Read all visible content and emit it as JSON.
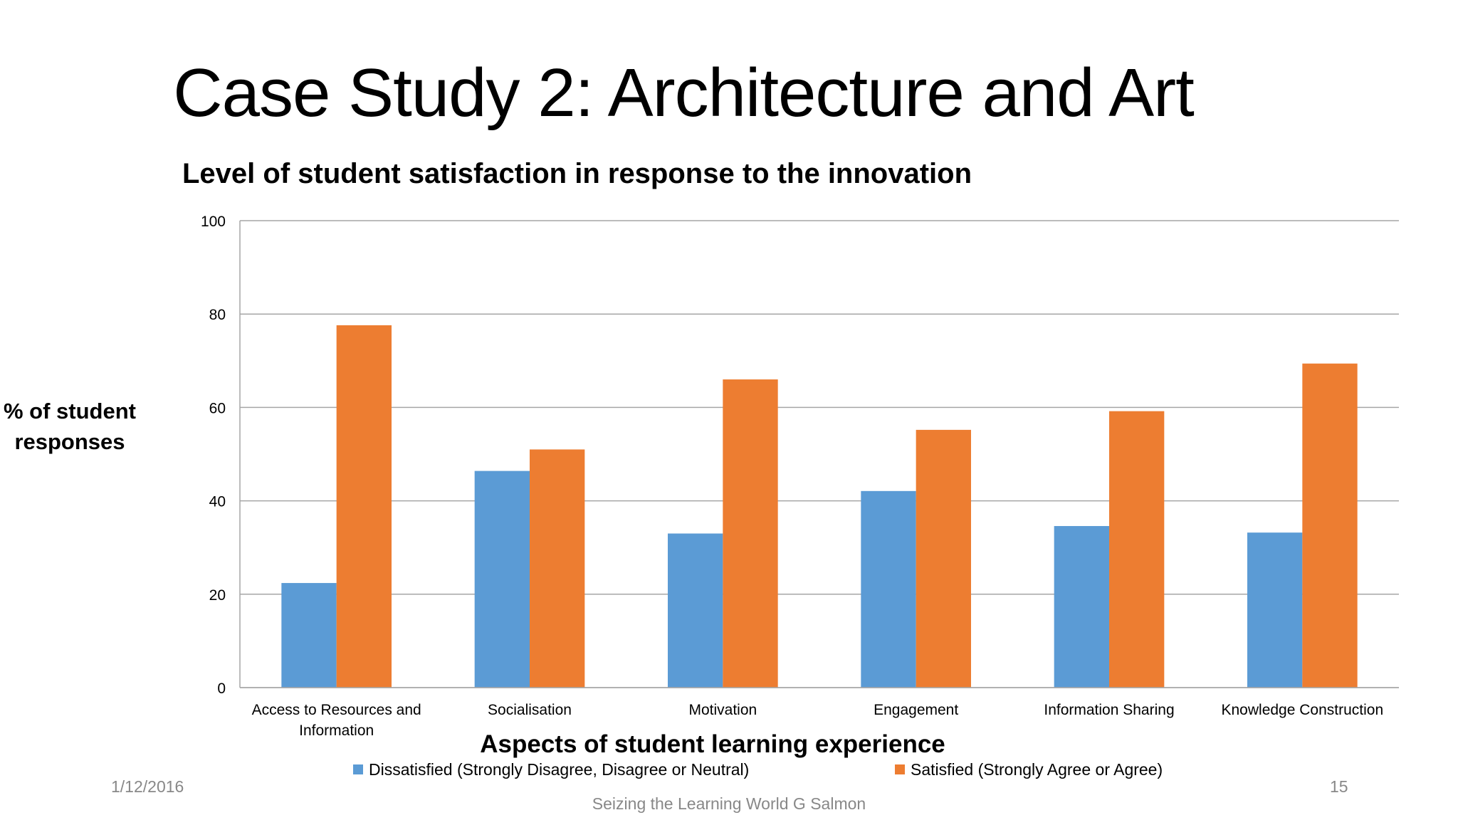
{
  "slide": {
    "title": "Case Study 2: Architecture and Art",
    "date": "1/12/2016",
    "page_number": "15",
    "footer": "Seizing the Learning World G Salmon"
  },
  "chart_data": {
    "type": "bar",
    "title": "Level of student satisfaction in response to the innovation",
    "ylabel_lines": [
      "% of student",
      "responses"
    ],
    "xlabel": "Aspects of student learning experience",
    "categories": [
      [
        "Access to Resources and",
        "Information"
      ],
      [
        "Socialisation"
      ],
      [
        "Motivation"
      ],
      [
        "Engagement"
      ],
      [
        "Information Sharing"
      ],
      [
        "Knowledge Construction"
      ]
    ],
    "series": [
      {
        "name": "Dissatisfied (Strongly Disagree, Disagree or Neutral)",
        "color": "#5B9BD5",
        "values": [
          22.4,
          46.4,
          33.0,
          42.1,
          34.6,
          33.2
        ]
      },
      {
        "name": "Satisfied (Strongly Agree or Agree)",
        "color": "#ED7D31",
        "values": [
          77.6,
          51.0,
          66.0,
          55.2,
          59.2,
          69.4
        ]
      }
    ],
    "yticks": [
      "0",
      "20",
      "40",
      "60",
      "80",
      "100"
    ],
    "ylim": [
      0,
      100
    ],
    "grid": true,
    "legend_position": "bottom"
  }
}
